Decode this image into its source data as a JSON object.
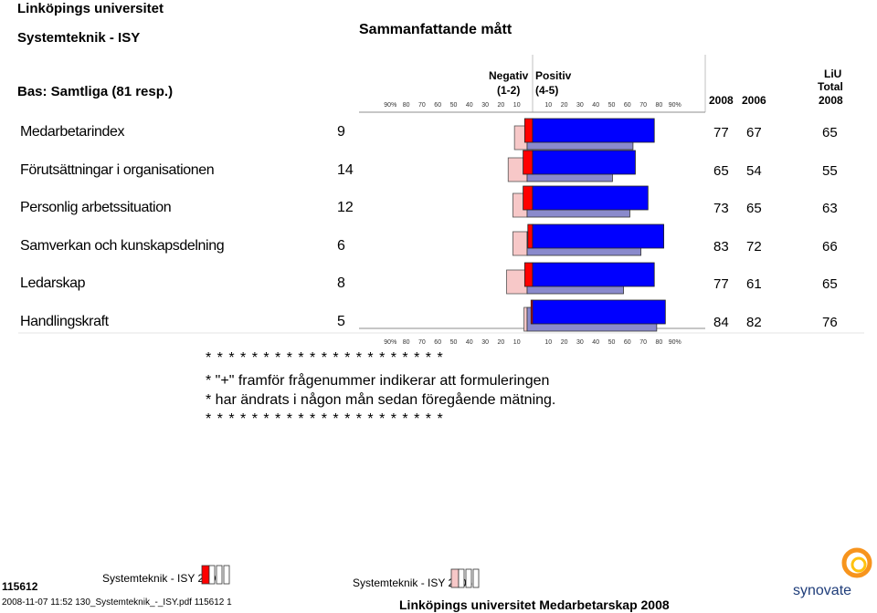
{
  "header": {
    "university": "Linköpings universitet",
    "unit": "Systemteknik - ISY",
    "title": "Sammanfattande mått",
    "base": "Bas: Samtliga (81 resp.)",
    "negative_label": "Negativ",
    "positive_label": "Positiv",
    "negative_scale": "(1-2)",
    "positive_scale": "(4-5)",
    "col_2008": "2008",
    "col_2006": "2006",
    "col_liu_1": "LiU",
    "col_liu_2": "Total",
    "col_liu_3": "2008"
  },
  "rows": [
    {
      "label": "Medarbetarindex",
      "n": "9",
      "y2008": "77",
      "y2006": "67",
      "liu": "65"
    },
    {
      "label": "Förutsättningar i organisationen",
      "n": "14",
      "y2008": "65",
      "y2006": "54",
      "liu": "55"
    },
    {
      "label": "Personlig arbetssituation",
      "n": "12",
      "y2008": "73",
      "y2006": "65",
      "liu": "63"
    },
    {
      "label": "Samverkan och kunskapsdelning",
      "n": "6",
      "y2008": "83",
      "y2006": "72",
      "liu": "66"
    },
    {
      "label": "Ledarskap",
      "n": "8",
      "y2008": "77",
      "y2006": "61",
      "liu": "65"
    },
    {
      "label": "Handlingskraft",
      "n": "5",
      "y2008": "84",
      "y2006": "82",
      "liu": "76"
    }
  ],
  "notes": {
    "stars": "* * * * * * * * * * * * * * * * * * * * *",
    "line1": "* \"+\" framför frågenummer indikerar att formuleringen",
    "line2": "* har ändrats i någon mån sedan föregående mätning."
  },
  "footer": {
    "legend_2008": "Systemteknik - ISY 2008",
    "legend_2006": "Systemteknik - ISY 2006",
    "code": "115612",
    "meta": "2008-11-07 11:52 130_Systemteknik_-_ISY.pdf 115612 1",
    "survey": "Linköpings universitet Medarbetarskap 2008",
    "logo_text": "synovate"
  },
  "colors": {
    "neg_2008": "#ff0000",
    "neg_2006": "#f7c8c8",
    "pos_2008": "#0000ff",
    "pos_2006": "#8a8acc",
    "grid": "#999999"
  },
  "chart_data": {
    "type": "bar",
    "subtype": "diverging-horizontal",
    "categories": [
      "Medarbetarindex",
      "Förutsättningar i organisationen",
      "Personlig arbetssituation",
      "Samverkan och kunskapsdelning",
      "Ledarskap",
      "Handlingskraft"
    ],
    "series": [
      {
        "name": "Systemteknik - ISY 2008",
        "side": "negative",
        "values": [
          5,
          6,
          6,
          3,
          5,
          1
        ]
      },
      {
        "name": "Systemteknik - ISY 2006",
        "side": "negative",
        "values": [
          8,
          12,
          9,
          9,
          13,
          2
        ]
      },
      {
        "name": "Systemteknik - ISY 2008",
        "side": "positive",
        "values": [
          77,
          65,
          73,
          83,
          77,
          84
        ]
      },
      {
        "name": "Systemteknik - ISY 2006",
        "side": "positive",
        "values": [
          67,
          54,
          65,
          72,
          61,
          82
        ]
      }
    ],
    "ticks_left": [
      "90%",
      "80",
      "70",
      "60",
      "50",
      "40",
      "30",
      "20",
      "10"
    ],
    "ticks_right": [
      "10",
      "20",
      "30",
      "40",
      "50",
      "60",
      "70",
      "80",
      "90%"
    ],
    "xlim": [
      -90,
      90
    ],
    "grid": false
  }
}
